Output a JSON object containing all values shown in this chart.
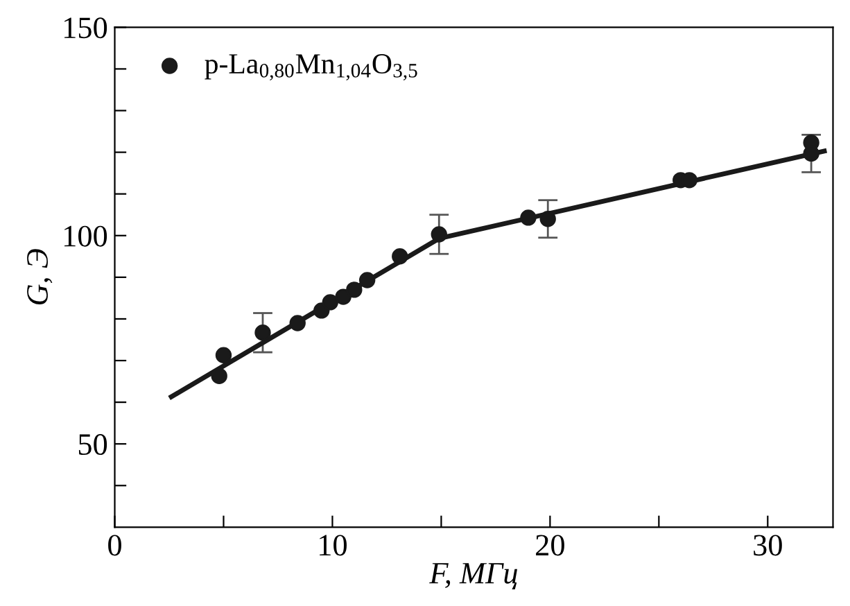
{
  "chart_data": {
    "type": "scatter",
    "xlabel": "F, МГц",
    "ylabel": "G, Э",
    "xlim": [
      0,
      33
    ],
    "ylim": [
      30,
      150
    ],
    "xticks": [
      0,
      {
        "value": 5,
        "label": null
      },
      10,
      {
        "value": 15,
        "label": null
      },
      20,
      {
        "value": 25,
        "label": null
      },
      30
    ],
    "yticks": [
      {
        "value": 40,
        "label": null
      },
      50,
      {
        "value": 60,
        "label": null
      },
      {
        "value": 70,
        "label": null
      },
      {
        "value": 80,
        "label": null
      },
      {
        "value": 90,
        "label": null
      },
      100,
      {
        "value": 110,
        "label": null
      },
      {
        "value": 120,
        "label": null
      },
      {
        "value": 130,
        "label": null
      },
      {
        "value": 140,
        "label": null
      },
      150
    ],
    "grid": false,
    "legend": "top left",
    "series": [
      {
        "name": "p-La$_{0,80}$Mn$_{1,04}$O$_{3,5}$",
        "marker": "circle",
        "color": "#1a1a1a",
        "x": [
          4.8,
          5.0,
          6.8,
          8.4,
          9.5,
          9.9,
          10.5,
          11.0,
          11.6,
          13.1,
          14.9,
          19.0,
          19.9,
          26.0,
          26.4,
          32.0,
          32.0
        ],
        "values": [
          66.3,
          71.3,
          76.7,
          79,
          82,
          84,
          85.3,
          87,
          89.3,
          95,
          100.3,
          104.3,
          104,
          113.3,
          113.3,
          122.3,
          119.7
        ],
        "errors": [
          null,
          null,
          4.7,
          null,
          null,
          null,
          null,
          null,
          null,
          null,
          4.7,
          null,
          4.5,
          null,
          null,
          null,
          4.5
        ]
      },
      {
        "type": "line",
        "color": "#1a1a1a",
        "x": [
          2.6,
          14.9,
          32.6
        ],
        "values": [
          61.3,
          99.3,
          120.3
        ]
      }
    ]
  }
}
